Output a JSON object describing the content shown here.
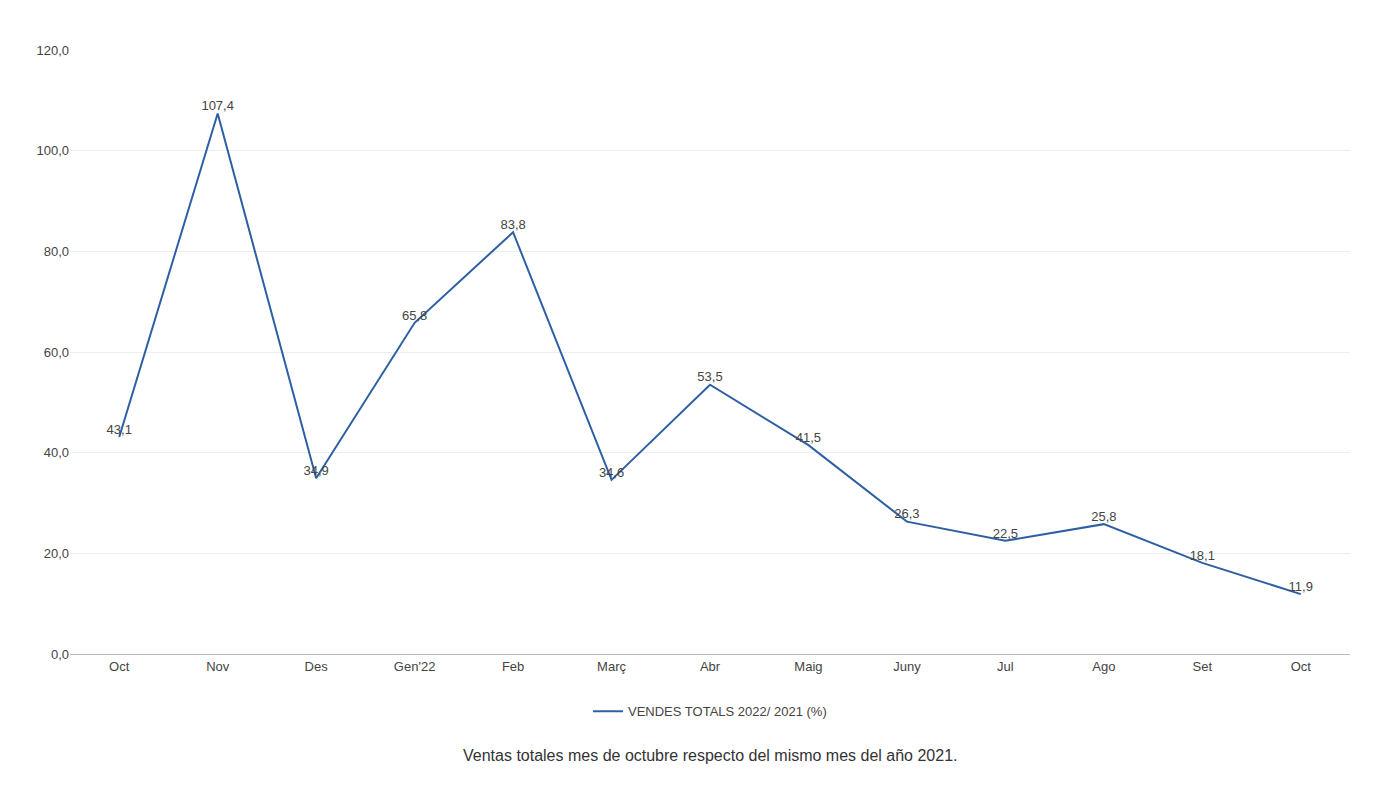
{
  "chart_data": {
    "type": "line",
    "categories": [
      "Oct",
      "Nov",
      "Des",
      "Gen'22",
      "Feb",
      "Març",
      "Abr",
      "Maig",
      "Juny",
      "Jul",
      "Ago",
      "Set",
      "Oct"
    ],
    "series": [
      {
        "name": "VENDES TOTALS 2022/ 2021 (%)",
        "color": "#2E5FA3",
        "values": [
          43.1,
          107.4,
          34.9,
          65.8,
          83.8,
          34.6,
          53.5,
          41.5,
          26.3,
          22.5,
          25.8,
          18.1,
          11.9
        ],
        "value_labels": [
          "43,1",
          "107,4",
          "34,9",
          "65,8",
          "83,8",
          "34,6",
          "53,5",
          "41,5",
          "26,3",
          "22,5",
          "25,8",
          "18,1",
          "11,9"
        ]
      }
    ],
    "ylim": [
      0,
      120
    ],
    "yticks": [
      {
        "value": 0,
        "label": "0,0"
      },
      {
        "value": 20,
        "label": "20,0"
      },
      {
        "value": 40,
        "label": "40,0"
      },
      {
        "value": 60,
        "label": "60,0"
      },
      {
        "value": 80,
        "label": "80,0"
      },
      {
        "value": 100,
        "label": "100,0"
      },
      {
        "value": 120,
        "label": "120,0"
      }
    ],
    "grid": true,
    "legend": "bottom",
    "data_labels": true,
    "annotations": [
      "Ventas totales mes de octubre respecto del mismo mes del año 2021."
    ]
  }
}
